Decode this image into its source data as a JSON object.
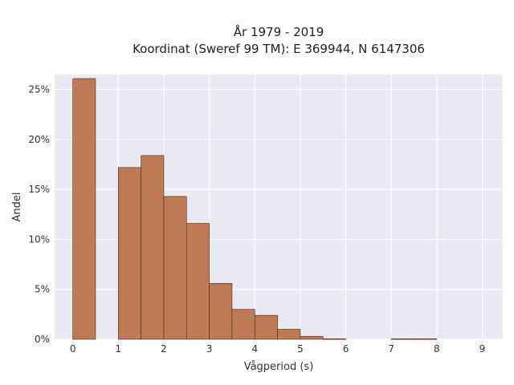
{
  "colors": {
    "bar_fill": "#bd7a55",
    "plot_bg": "#eaeaf2"
  },
  "chart_data": {
    "type": "bar",
    "title": "År 1979 - 2019",
    "subtitle": "Koordinat (Sweref 99 TM): E 369944, N 6147306",
    "xlabel": "Vågperiod (s)",
    "ylabel": "Andel",
    "xlim": [
      -0.4,
      9.45
    ],
    "ylim": [
      0,
      0.265
    ],
    "x_ticks": [
      0,
      1,
      2,
      3,
      4,
      5,
      6,
      7,
      8,
      9
    ],
    "x_tick_labels": [
      "0",
      "1",
      "2",
      "3",
      "4",
      "5",
      "6",
      "7",
      "8",
      "9"
    ],
    "y_ticks": [
      0,
      0.05,
      0.1,
      0.15,
      0.2,
      0.25
    ],
    "y_tick_labels": [
      "0%",
      "5%",
      "10%",
      "15%",
      "20%",
      "25%"
    ],
    "grid": true,
    "bin_width": 0.5,
    "bins": [
      {
        "start": 0.0,
        "value": 0.261
      },
      {
        "start": 1.0,
        "value": 0.172
      },
      {
        "start": 1.5,
        "value": 0.184
      },
      {
        "start": 2.0,
        "value": 0.143
      },
      {
        "start": 2.5,
        "value": 0.116
      },
      {
        "start": 3.0,
        "value": 0.056
      },
      {
        "start": 3.5,
        "value": 0.03
      },
      {
        "start": 4.0,
        "value": 0.024
      },
      {
        "start": 4.5,
        "value": 0.01
      },
      {
        "start": 5.0,
        "value": 0.003
      },
      {
        "start": 5.5,
        "value": 0.0005
      },
      {
        "start": 7.0,
        "value": 0.0005
      },
      {
        "start": 7.5,
        "value": 0.0005
      }
    ]
  }
}
